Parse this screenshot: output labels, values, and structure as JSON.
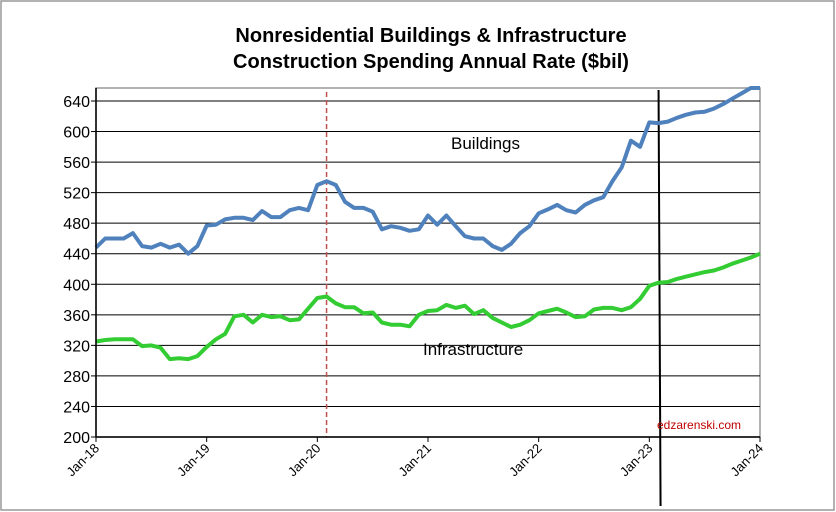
{
  "chart_data": {
    "type": "line",
    "title": "Nonresidential Buildings & Infrastructure",
    "subtitle": "Construction Spending Annual Rate ($bil)",
    "xlabel": "",
    "ylabel": "",
    "ylim": [
      200,
      660
    ],
    "yticks": [
      200,
      240,
      280,
      320,
      360,
      400,
      440,
      480,
      520,
      560,
      600,
      640
    ],
    "xticks": [
      "Jan-18",
      "Jan-19",
      "Jan-20",
      "Jan-21",
      "Jan-22",
      "Jan-23",
      "Jan-24"
    ],
    "x_start": "Jan-18",
    "x_end": "Jan-24",
    "grid": true,
    "annotations": {
      "buildings": "Buildings",
      "infrastructure": "Infrastructure",
      "source": "edzarenski.com"
    },
    "markers": [
      {
        "month": "Feb-20",
        "style": "dashed",
        "color": "#c0504d"
      },
      {
        "month": "Feb-23",
        "style": "solid",
        "color": "#000000"
      }
    ],
    "series": [
      {
        "label_key": "buildings",
        "color": "#4f81bd",
        "values": [
          448,
          460,
          460,
          460,
          467,
          450,
          448,
          453,
          448,
          452,
          440,
          450,
          477,
          478,
          485,
          487,
          487,
          484,
          496,
          488,
          488,
          497,
          500,
          497,
          530,
          535,
          530,
          508,
          500,
          500,
          495,
          472,
          476,
          474,
          470,
          472,
          490,
          478,
          490,
          476,
          463,
          460,
          460,
          450,
          445,
          453,
          467,
          476,
          493,
          498,
          504,
          497,
          494,
          504,
          510,
          514,
          535,
          553,
          588,
          580,
          612,
          611,
          613,
          618,
          622,
          625,
          626,
          630,
          636,
          643,
          650,
          658,
          665
        ]
      },
      {
        "label_key": "infrastructure",
        "color": "#33cc33",
        "values": [
          325,
          327,
          328,
          328,
          328,
          319,
          320,
          317,
          302,
          303,
          302,
          306,
          318,
          328,
          335,
          358,
          360,
          350,
          360,
          357,
          358,
          353,
          354,
          368,
          382,
          384,
          375,
          370,
          370,
          362,
          363,
          350,
          347,
          347,
          345,
          360,
          365,
          366,
          373,
          369,
          372,
          361,
          366,
          356,
          350,
          344,
          347,
          353,
          362,
          365,
          368,
          363,
          357,
          358,
          367,
          369,
          369,
          366,
          370,
          381,
          398,
          402,
          403,
          407,
          410,
          413,
          416,
          418,
          422,
          427,
          431,
          435,
          440
        ]
      }
    ]
  }
}
